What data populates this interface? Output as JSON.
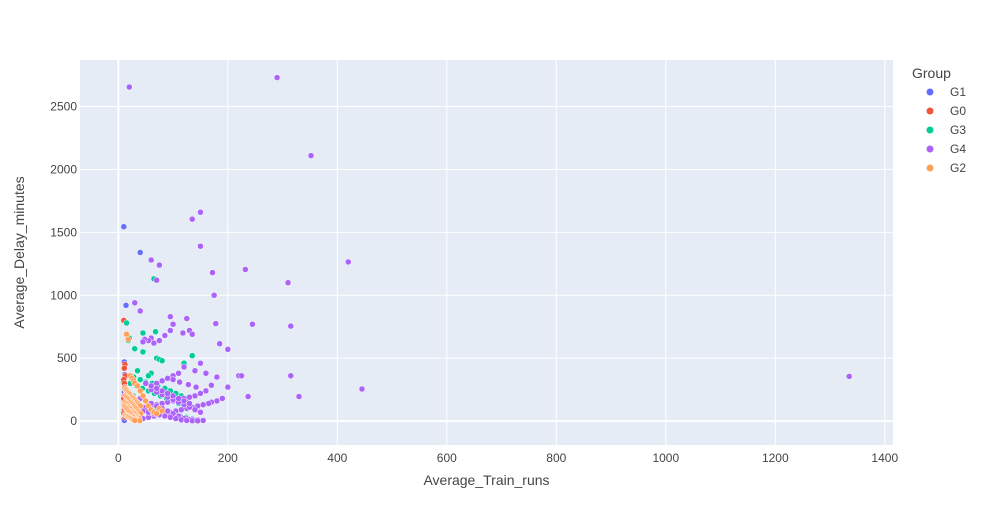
{
  "chart_data": {
    "type": "scatter",
    "title": "",
    "xlabel": "Average_Train_runs",
    "ylabel": "Average_Delay_minutes",
    "xlim": [
      -70,
      1415
    ],
    "ylim": [
      -190,
      2870
    ],
    "xticks": [
      0,
      200,
      400,
      600,
      800,
      1000,
      1200,
      1400
    ],
    "yticks": [
      0,
      500,
      1000,
      1500,
      2000,
      2500
    ],
    "grid": true,
    "plot_background": "#E5ECF6",
    "legend": {
      "title": "Group",
      "placement": "top-right, outside plot"
    },
    "series": [
      {
        "name": "G1",
        "color": "#636EFA",
        "x": [
          10,
          40,
          14,
          11,
          12,
          10,
          13,
          11,
          12,
          10,
          11,
          13,
          12,
          10,
          11,
          12,
          10,
          11
        ],
        "y": [
          1545,
          1340,
          920,
          470,
          370,
          310,
          260,
          230,
          200,
          170,
          140,
          120,
          95,
          70,
          50,
          30,
          15,
          5
        ]
      },
      {
        "name": "G0",
        "color": "#EF553B",
        "x": [
          10,
          12,
          11,
          13,
          10,
          11,
          12,
          14,
          11,
          10,
          12,
          13,
          11,
          10,
          12
        ],
        "y": [
          800,
          450,
          420,
          360,
          330,
          300,
          270,
          240,
          200,
          180,
          150,
          120,
          90,
          60,
          30
        ]
      },
      {
        "name": "G3",
        "color": "#00CC96",
        "x": [
          15,
          18,
          20,
          65,
          68,
          45,
          48,
          70,
          30,
          45,
          75,
          80,
          60,
          35,
          55,
          120,
          135,
          28,
          40,
          50,
          62,
          72,
          85,
          95,
          105,
          115,
          125,
          22,
          33,
          44,
          55,
          66,
          77,
          88,
          99,
          110,
          130,
          25,
          36,
          47,
          58,
          69,
          80,
          91,
          102,
          113,
          124,
          135,
          18,
          27
        ],
        "y": [
          780,
          640,
          660,
          1130,
          710,
          700,
          640,
          500,
          575,
          550,
          490,
          480,
          380,
          400,
          360,
          460,
          520,
          350,
          330,
          310,
          300,
          280,
          260,
          240,
          220,
          200,
          180,
          300,
          280,
          260,
          240,
          220,
          200,
          180,
          160,
          140,
          120,
          150,
          130,
          110,
          90,
          80,
          70,
          60,
          50,
          40,
          30,
          20,
          220,
          200
        ]
      },
      {
        "name": "G4",
        "color": "#AB63FA",
        "x": [
          290,
          20,
          352,
          150,
          135,
          150,
          60,
          75,
          232,
          172,
          420,
          70,
          310,
          175,
          30,
          40,
          95,
          125,
          245,
          178,
          315,
          85,
          100,
          95,
          130,
          135,
          118,
          200,
          185,
          60,
          55,
          48,
          65,
          75,
          45,
          220,
          225,
          315,
          170,
          200,
          237,
          150,
          120,
          140,
          160,
          180,
          445,
          1335,
          330,
          110,
          100,
          90,
          80,
          70,
          160,
          150,
          140,
          130,
          120,
          110,
          100,
          90,
          80,
          70,
          60,
          50,
          40,
          190,
          180,
          170,
          165,
          155,
          145,
          135,
          125,
          115,
          105,
          95,
          85,
          75,
          65,
          55,
          45,
          35,
          60,
          70,
          80,
          90,
          100,
          110,
          120,
          130,
          140,
          150,
          50,
          60,
          70,
          80,
          90,
          100,
          110,
          120,
          130,
          85,
          95,
          105,
          115,
          125,
          135,
          145,
          155,
          40,
          50,
          60,
          70,
          80,
          90,
          100,
          110,
          120,
          130,
          140,
          35,
          45,
          55,
          65,
          75,
          85,
          95,
          105,
          115,
          125,
          135,
          145,
          100,
          112,
          128,
          142
        ],
        "y": [
          2730,
          2655,
          2110,
          1660,
          1605,
          1390,
          1280,
          1240,
          1205,
          1180,
          1265,
          1120,
          1100,
          1000,
          940,
          875,
          830,
          815,
          770,
          775,
          755,
          680,
          770,
          720,
          720,
          690,
          700,
          570,
          615,
          660,
          640,
          650,
          620,
          640,
          630,
          360,
          360,
          360,
          285,
          270,
          195,
          460,
          430,
          400,
          380,
          350,
          255,
          355,
          195,
          380,
          360,
          340,
          320,
          300,
          240,
          220,
          200,
          190,
          180,
          170,
          160,
          150,
          140,
          130,
          120,
          110,
          100,
          180,
          160,
          150,
          140,
          130,
          120,
          110,
          100,
          90,
          80,
          70,
          60,
          50,
          40,
          30,
          20,
          10,
          250,
          230,
          210,
          190,
          170,
          150,
          130,
          110,
          90,
          70,
          300,
          280,
          260,
          240,
          220,
          200,
          180,
          160,
          140,
          60,
          50,
          40,
          30,
          20,
          15,
          10,
          5,
          180,
          160,
          140,
          120,
          100,
          80,
          60,
          40,
          20,
          10,
          5,
          90,
          80,
          70,
          60,
          50,
          40,
          30,
          20,
          10,
          5,
          3,
          2,
          330,
          310,
          290,
          270
        ]
      },
      {
        "name": "G2",
        "color": "#FFA15A",
        "x": [
          15,
          18,
          22,
          25,
          28,
          30,
          35,
          40,
          45,
          50,
          55,
          60,
          65,
          70,
          75,
          80,
          12,
          14,
          16,
          18,
          20,
          22,
          24,
          26,
          28,
          30,
          32,
          34,
          36,
          38,
          40,
          13,
          15,
          17,
          19,
          21,
          23,
          25,
          27,
          29,
          31,
          33,
          35,
          37,
          39,
          41,
          12,
          14,
          16,
          18,
          20,
          22,
          24,
          26,
          28,
          30,
          32,
          34,
          36,
          38,
          11,
          13,
          15,
          17,
          19,
          21,
          23,
          25,
          27,
          29,
          31,
          33,
          35,
          37,
          39,
          12,
          14,
          16,
          18,
          20,
          22,
          24,
          26,
          28,
          30
        ],
        "y": [
          690,
          650,
          360,
          340,
          320,
          300,
          280,
          240,
          200,
          160,
          120,
          90,
          70,
          60,
          100,
          80,
          260,
          250,
          240,
          230,
          220,
          210,
          200,
          190,
          180,
          170,
          160,
          150,
          140,
          130,
          120,
          200,
          190,
          180,
          170,
          160,
          150,
          140,
          130,
          120,
          110,
          100,
          90,
          80,
          70,
          60,
          150,
          140,
          130,
          120,
          110,
          100,
          90,
          80,
          70,
          60,
          50,
          40,
          30,
          20,
          120,
          110,
          100,
          90,
          80,
          70,
          60,
          50,
          40,
          30,
          20,
          15,
          10,
          5,
          3,
          50,
          45,
          40,
          35,
          30,
          25,
          20,
          15,
          10,
          5
        ]
      }
    ]
  }
}
